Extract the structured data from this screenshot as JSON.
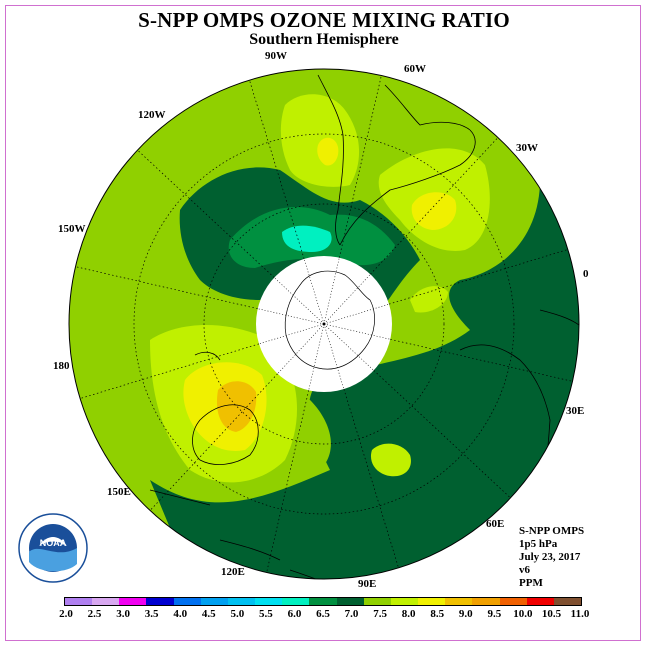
{
  "title": "S-NPP OMPS OZONE MIXING RATIO",
  "subtitle": "Southern Hemisphere",
  "meridian_labels": [
    "90W",
    "60W",
    "30W",
    "0",
    "30E",
    "60E",
    "90E",
    "120E",
    "150E",
    "180",
    "150W",
    "120W"
  ],
  "info": {
    "line1": "S-NPP OMPS",
    "line2": "1p5 hPa",
    "line3": "July 23, 2017",
    "line4": "v6",
    "line5": "PPM"
  },
  "logo_text": "NOAA",
  "colorbar": {
    "ticks": [
      "2.0",
      "2.5",
      "3.0",
      "3.5",
      "4.0",
      "4.5",
      "5.0",
      "5.5",
      "6.0",
      "6.5",
      "7.0",
      "7.5",
      "8.0",
      "8.5",
      "9.0",
      "9.5",
      "10.0",
      "10.5",
      "11.0"
    ],
    "colors": [
      "#b080f0",
      "#d8a8f0",
      "#f000f0",
      "#0000d0",
      "#0070f0",
      "#00a0f0",
      "#00c0f0",
      "#00e0f0",
      "#00f0c0",
      "#009040",
      "#006030",
      "#90d000",
      "#c0f000",
      "#f0f000",
      "#f0c000",
      "#f0a000",
      "#f06000",
      "#f00000",
      "#805030"
    ]
  },
  "map_colors": {
    "v65": "#009040",
    "v70": "#006030",
    "v75": "#90d000",
    "v80": "#c0f000",
    "v85": "#f0f000",
    "v90": "#f0c000",
    "v95": "#f0a000",
    "v60": "#00f0c0"
  }
}
